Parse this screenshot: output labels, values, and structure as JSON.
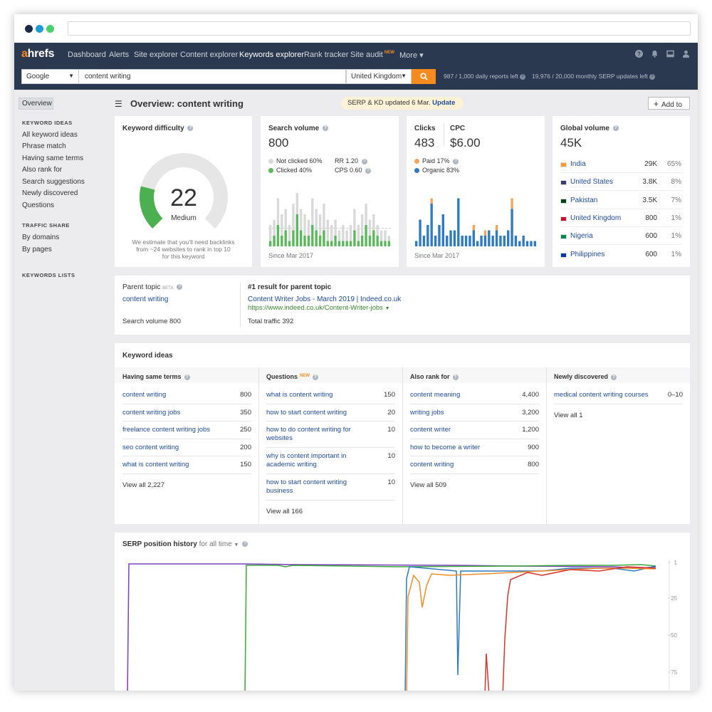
{
  "browser": {
    "dot_colors": [
      "#1a2a48",
      "#1e9bd8",
      "#4bd16c"
    ]
  },
  "nav": {
    "logo_a": "a",
    "logo_rest": "hrefs",
    "items": [
      "Dashboard",
      "Alerts",
      "Site explorer",
      "Content explorer",
      "Keywords explorer",
      "Rank tracker",
      "Site audit",
      "More"
    ],
    "new_tag": "NEW",
    "more_caret": "▾"
  },
  "search": {
    "engine": "Google",
    "keyword": "content writing",
    "country": "United Kingdom",
    "go_icon": "search-icon",
    "reports_daily": "987 / 1,000 daily reports left",
    "reports_monthly": "19,976 / 20,000 monthly SERP updates left"
  },
  "sidebar": {
    "overview": "Overview",
    "keyword_ideas_header": "KEYWORD IDEAS",
    "keyword_ideas": [
      "All keyword ideas",
      "Phrase match",
      "Having same terms",
      "Also rank for",
      "Search suggestions",
      "Newly discovered",
      "Questions"
    ],
    "traffic_share_header": "TRAFFIC SHARE",
    "traffic_share": [
      "By domains",
      "By pages"
    ],
    "keywords_lists_header": "KEYWORDS LISTS"
  },
  "header": {
    "title": "Overview: content writing",
    "badge_text": "SERP & KD updated 6 Mar.",
    "badge_link": "Update",
    "add_to": "Add to"
  },
  "kd": {
    "title": "Keyword difficulty",
    "value": "22",
    "label": "Medium",
    "fraction": 0.22,
    "note": "We estimate that you'll need backlinks from ~24 websites to rank in top 10 for this keyword",
    "note_lines": [
      "We estimate that you’ll need backlinks",
      "from ~24 websites to rank in top 10",
      "for this keyword"
    ]
  },
  "search_volume": {
    "title": "Search volume",
    "value": "800",
    "not_clicked": "Not clicked 60%",
    "clicked": "Clicked 40%",
    "rr": "RR 1.20",
    "cps": "CPS 0.60",
    "since": "Since Mar 2017",
    "colors": {
      "not_clicked": "#d9d9d9",
      "clicked": "#5cb85c"
    },
    "bars_total": [
      4,
      5,
      9,
      6,
      7,
      4,
      8,
      10,
      7,
      6,
      5,
      9,
      7,
      6,
      8,
      5,
      4,
      5,
      3,
      4,
      3,
      4,
      7,
      4,
      6,
      8,
      5,
      6,
      4,
      3,
      3,
      2
    ],
    "bars_clicked": [
      1,
      2,
      4,
      2,
      3,
      1,
      3,
      6,
      3,
      2,
      2,
      4,
      3,
      2,
      3,
      1,
      1,
      2,
      1,
      1,
      1,
      1,
      3,
      1,
      2,
      4,
      2,
      3,
      2,
      1,
      1,
      1
    ]
  },
  "clicks": {
    "title": "Clicks",
    "value": "483",
    "cpc_title": "CPC",
    "cpc_value": "$6.00",
    "paid": "Paid 17%",
    "organic": "Organic 83%",
    "since": "Since Mar 2017",
    "colors": {
      "paid": "#f4a55a",
      "organic": "#2f7bbf"
    },
    "bars_paid": [
      0,
      0,
      0,
      0,
      1,
      0,
      0,
      0,
      0,
      0,
      0,
      0,
      0,
      0,
      0,
      1,
      0,
      0,
      1,
      0,
      0,
      1,
      0,
      0,
      0,
      2,
      0,
      0,
      0,
      0,
      0,
      0
    ],
    "bars_organic": [
      1,
      5,
      2,
      4,
      8,
      2,
      4,
      6,
      2,
      3,
      3,
      9,
      2,
      2,
      2,
      3,
      1,
      2,
      2,
      3,
      2,
      3,
      2,
      2,
      3,
      7,
      2,
      1,
      2,
      1,
      1,
      1
    ]
  },
  "global_volume": {
    "title": "Global volume",
    "value": "45K",
    "countries": [
      {
        "name": "India",
        "volume": "29K",
        "pct": "65%",
        "flag": "#ff9933"
      },
      {
        "name": "United States",
        "volume": "3.8K",
        "pct": "8%",
        "flag": "#3c3b6e"
      },
      {
        "name": "Pakistan",
        "volume": "3.5K",
        "pct": "7%",
        "flag": "#01411c"
      },
      {
        "name": "United Kingdom",
        "volume": "800",
        "pct": "1%",
        "flag": "#c8102e"
      },
      {
        "name": "Nigeria",
        "volume": "600",
        "pct": "1%",
        "flag": "#008751"
      },
      {
        "name": "Philippines",
        "volume": "600",
        "pct": "1%",
        "flag": "#0038a8"
      }
    ]
  },
  "parent_topic": {
    "title": "Parent topic",
    "beta": "BETA",
    "topic": "content writing",
    "volume": "Search volume 800",
    "result_title": "#1 result for parent topic",
    "result_link": "Content Writer Jobs - March 2019 | Indeed.co.uk",
    "result_url": "https://www.indeed.co.uk/Content-Writer-jobs",
    "traffic": "Total traffic 392"
  },
  "keyword_ideas": {
    "title": "Keyword ideas",
    "columns": [
      {
        "header": "Having same terms",
        "rows": [
          {
            "kw": "content writing",
            "vol": "800"
          },
          {
            "kw": "content writing jobs",
            "vol": "350"
          },
          {
            "kw": "freelance content writing jobs",
            "vol": "250"
          },
          {
            "kw": "seo content writing",
            "vol": "200"
          },
          {
            "kw": "what is content writing",
            "vol": "150"
          }
        ],
        "view_all": "View all 2,227"
      },
      {
        "header": "Questions",
        "new_tag": "NEW",
        "rows": [
          {
            "kw": "what is content writing",
            "vol": "150"
          },
          {
            "kw": "how to start content writing",
            "vol": "20"
          },
          {
            "kw": "how to do content writing for websites",
            "vol": "10"
          },
          {
            "kw": "why is content important in academic writing",
            "vol": "10"
          },
          {
            "kw": "how to start content writing business",
            "vol": "10"
          }
        ],
        "view_all": "View all 166"
      },
      {
        "header": "Also rank for",
        "rows": [
          {
            "kw": "content meaning",
            "vol": "4,400"
          },
          {
            "kw": "writing jobs",
            "vol": "3,200"
          },
          {
            "kw": "content writer",
            "vol": "1,200"
          },
          {
            "kw": "how to become a writer",
            "vol": "900"
          },
          {
            "kw": "content writing",
            "vol": "800"
          }
        ],
        "view_all": "View all 509"
      },
      {
        "header": "Newly discovered",
        "rows": [
          {
            "kw": "medical content writing courses",
            "vol": "0–10"
          }
        ],
        "view_all": "View all 1"
      }
    ]
  },
  "serp_history": {
    "title": "SERP position history",
    "range": "for all time",
    "y_ticks": [
      "1",
      "25",
      "50",
      "75"
    ],
    "colors": {
      "purple": "#7b3fbf",
      "green": "#3aa83a",
      "blue": "#2f7bbf",
      "orange": "#f28c28",
      "red": "#d9342b"
    }
  }
}
